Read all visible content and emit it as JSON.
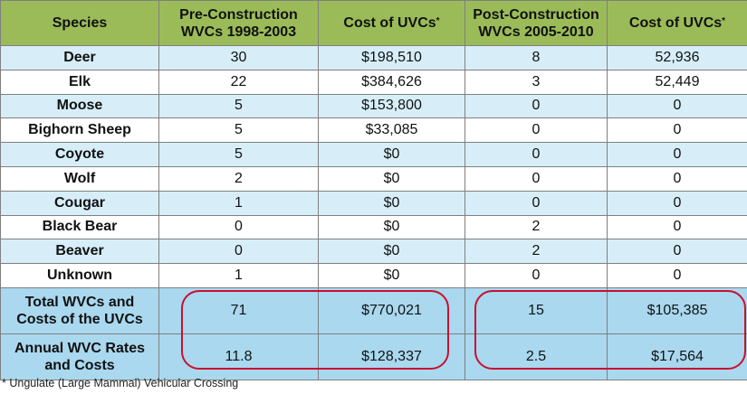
{
  "header": {
    "species": "Species",
    "pre_line1": "Pre-Construction",
    "pre_line2": "WVCs 1998-2003",
    "cost": "Cost of UVCs",
    "cost_mark": "*",
    "post_line1": "Post-Construction",
    "post_line2": "WVCs 2005-2010"
  },
  "rows": [
    {
      "species": "Deer",
      "pre": "30",
      "pre_cost": "$198,510",
      "post": "8",
      "post_cost": "52,936"
    },
    {
      "species": "Elk",
      "pre": "22",
      "pre_cost": "$384,626",
      "post": "3",
      "post_cost": "52,449"
    },
    {
      "species": "Moose",
      "pre": "5",
      "pre_cost": "$153,800",
      "post": "0",
      "post_cost": "0"
    },
    {
      "species": "Bighorn Sheep",
      "pre": "5",
      "pre_cost": "$33,085",
      "post": "0",
      "post_cost": "0"
    },
    {
      "species": "Coyote",
      "pre": "5",
      "pre_cost": "$0",
      "post": "0",
      "post_cost": "0"
    },
    {
      "species": "Wolf",
      "pre": "2",
      "pre_cost": "$0",
      "post": "0",
      "post_cost": "0"
    },
    {
      "species": "Cougar",
      "pre": "1",
      "pre_cost": "$0",
      "post": "0",
      "post_cost": "0"
    },
    {
      "species": "Black Bear",
      "pre": "0",
      "pre_cost": "$0",
      "post": "2",
      "post_cost": "0"
    },
    {
      "species": "Beaver",
      "pre": "0",
      "pre_cost": "$0",
      "post": "2",
      "post_cost": "0"
    },
    {
      "species": "Unknown",
      "pre": "1",
      "pre_cost": "$0",
      "post": "0",
      "post_cost": "0"
    }
  ],
  "totals": [
    {
      "label_line1": "Total WVCs and",
      "label_line2": "Costs of the UVCs",
      "pre": "71",
      "pre_cost": "$770,021",
      "post": "15",
      "post_cost": "$105,385"
    },
    {
      "label_line1": "Annual WVC Rates",
      "label_line2": "and Costs",
      "pre": "11.8",
      "pre_cost": "$128,337",
      "post": "2.5",
      "post_cost": "$17,564"
    }
  ],
  "footnote": "* Ungulate (Large Mammal) Vehicular Crossing",
  "colors": {
    "header_bg": "#9bbb59",
    "row_alt_bg": "#d7eef9",
    "total_bg": "#a9d8ef",
    "highlight": "#c8102e"
  }
}
